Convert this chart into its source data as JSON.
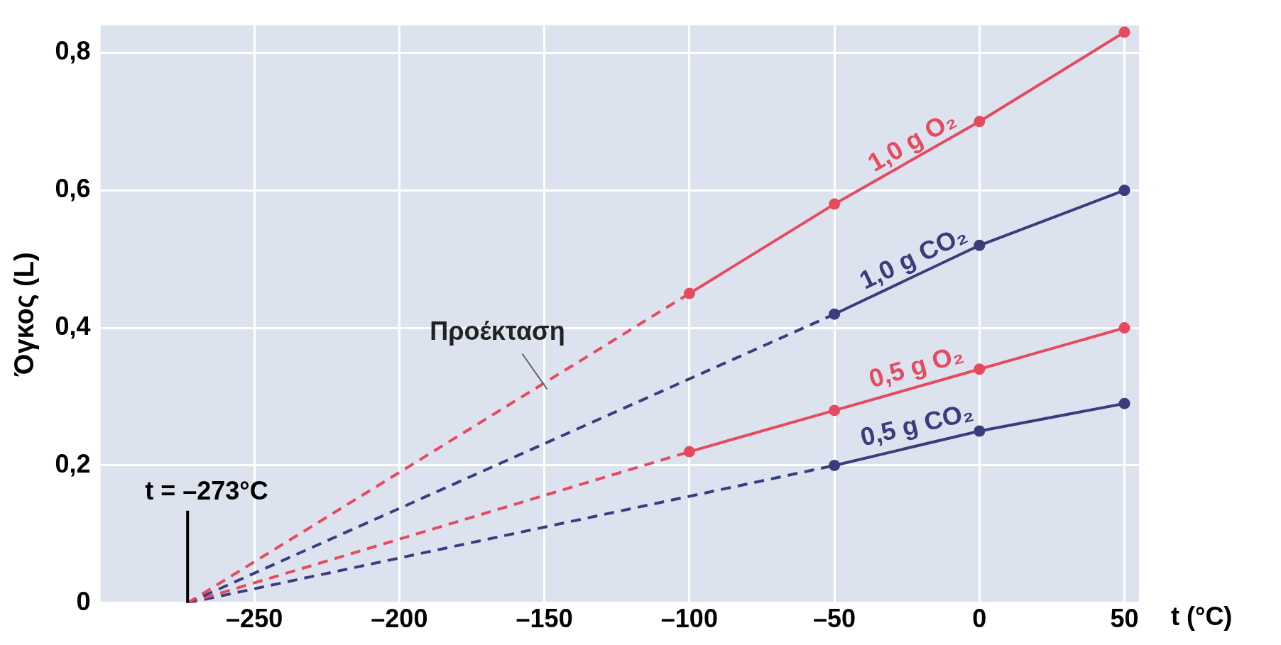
{
  "chart_data": {
    "type": "line",
    "xlabel": "t (°C)",
    "ylabel": "Όγκος (L)",
    "xlim": [
      -303,
      55
    ],
    "ylim": [
      0,
      0.84
    ],
    "xticks": [
      {
        "value": -250,
        "label": "–250"
      },
      {
        "value": -200,
        "label": "–200"
      },
      {
        "value": -150,
        "label": "–150"
      },
      {
        "value": -100,
        "label": "–100"
      },
      {
        "value": -50,
        "label": "–50"
      },
      0,
      50
    ],
    "yticks": [
      0,
      {
        "value": 0.2,
        "label": "0,2"
      },
      {
        "value": 0.4,
        "label": "0,4"
      },
      {
        "value": 0.6,
        "label": "0,6"
      },
      {
        "value": 0.8,
        "label": "0,8"
      }
    ],
    "grid": true,
    "legend": false,
    "marker": "circle",
    "line_style": "solid",
    "series": [
      {
        "name": "1,0 g O₂",
        "color": "#e64a5f",
        "x": [
          -100,
          -50,
          0,
          50
        ],
        "values": [
          0.45,
          0.58,
          0.7,
          0.83
        ]
      },
      {
        "name": "1,0 g CO₂",
        "color": "#3a3d7c",
        "x": [
          -50,
          0,
          50
        ],
        "values": [
          0.42,
          0.52,
          0.6
        ]
      },
      {
        "name": "0,5 g O₂",
        "color": "#e64a5f",
        "x": [
          -100,
          -50,
          0,
          50
        ],
        "values": [
          0.22,
          0.28,
          0.34,
          0.4
        ]
      },
      {
        "name": "0,5 g CO₂",
        "color": "#3a3d7c",
        "x": [
          -50,
          0,
          50
        ],
        "values": [
          0.2,
          0.25,
          0.29
        ]
      },
      {
        "color": "#e64a5f",
        "x": [
          -273,
          -100
        ],
        "values": [
          0,
          0.45
        ],
        "line_style": "dashed",
        "marker": "none"
      },
      {
        "color": "#3a3d7c",
        "x": [
          -273,
          -50
        ],
        "values": [
          0,
          0.42
        ],
        "line_style": "dashed",
        "marker": "none"
      },
      {
        "color": "#e64a5f",
        "x": [
          -273,
          -100
        ],
        "values": [
          0,
          0.22
        ],
        "line_style": "dashed",
        "marker": "none"
      },
      {
        "color": "#3a3d7c",
        "x": [
          -273,
          -50
        ],
        "values": [
          0,
          0.2
        ],
        "line_style": "dashed",
        "marker": "none"
      }
    ],
    "ref_lines": [
      {
        "axis": "x",
        "value": -273,
        "label": "t = –273°C",
        "color": "#000000"
      }
    ],
    "annotations": [
      "Προέκταση"
    ]
  }
}
